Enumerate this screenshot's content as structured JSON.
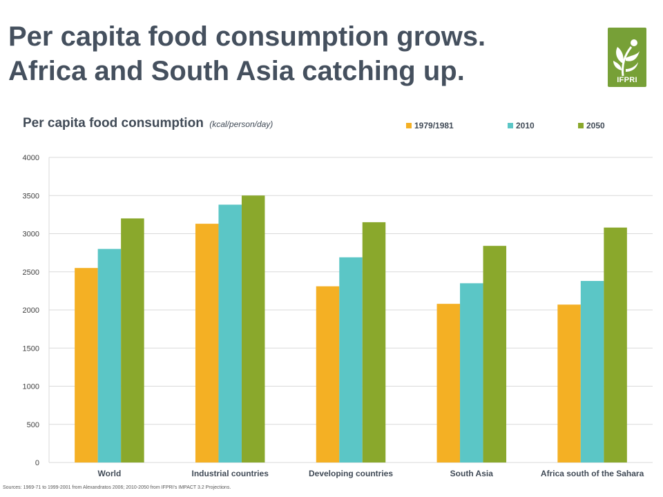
{
  "slide": {
    "title_line1": "Per capita food consumption grows.",
    "title_line2": "Africa and South Asia catching up.",
    "logo_text": "IFPRI",
    "logo_color": "#77a037",
    "sources": "Sources: 1969-71 to 1999-2001 from Alexandratos 2006; 2010-2050 from IFPRI's IMPACT 3.2 Projections."
  },
  "chart_data": {
    "type": "bar",
    "title": "Per capita food consumption",
    "unit": "(kcal/person/day)",
    "categories": [
      "World",
      "Industrial countries",
      "Developing countries",
      "South Asia",
      "Africa south of the Sahara"
    ],
    "series": [
      {
        "name": "1979/1981",
        "color": "#f4b024",
        "values": [
          2550,
          3130,
          2310,
          2080,
          2070
        ]
      },
      {
        "name": "2010",
        "color": "#5bc6c6",
        "values": [
          2800,
          3380,
          2690,
          2350,
          2380
        ]
      },
      {
        "name": "2050",
        "color": "#8aa82c",
        "values": [
          3200,
          3500,
          3150,
          2840,
          3080
        ]
      }
    ],
    "ylim": [
      0,
      4000
    ],
    "yticks": [
      0,
      500,
      1000,
      1500,
      2000,
      2500,
      3000,
      3500,
      4000
    ],
    "grid": true,
    "legend_position": "top-right"
  }
}
